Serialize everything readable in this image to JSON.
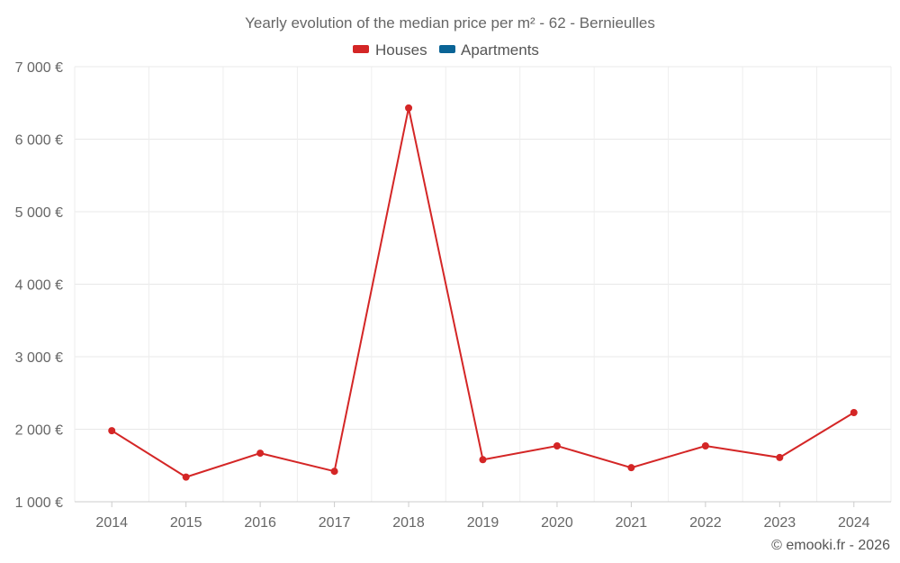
{
  "chart_data": {
    "type": "line",
    "title": "Yearly evolution of the median price per m² - 62 - Bernieulles",
    "categories": [
      "2014",
      "2015",
      "2016",
      "2017",
      "2018",
      "2019",
      "2020",
      "2021",
      "2022",
      "2023",
      "2024"
    ],
    "series": [
      {
        "name": "Houses",
        "color": "#d42626",
        "values": [
          1980,
          1340,
          1670,
          1420,
          6430,
          1580,
          1770,
          1470,
          1770,
          1610,
          2230
        ]
      },
      {
        "name": "Apartments",
        "color": "#0a6496",
        "values": [
          null,
          null,
          null,
          null,
          null,
          null,
          null,
          null,
          null,
          null,
          null
        ]
      }
    ],
    "ylim": [
      1000,
      7000
    ],
    "y_ticks": [
      1000,
      2000,
      3000,
      4000,
      5000,
      6000,
      7000
    ],
    "y_tick_labels": [
      "1 000 €",
      "2 000 €",
      "3 000 €",
      "4 000 €",
      "5 000 €",
      "6 000 €",
      "7 000 €"
    ],
    "grid": true,
    "legend_position": "top-center",
    "credit": "© emooki.fr - 2026"
  }
}
